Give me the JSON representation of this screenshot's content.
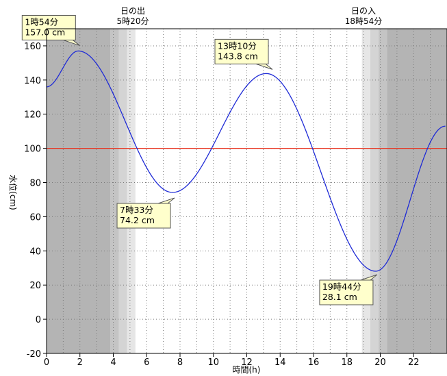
{
  "chart_data": {
    "type": "line",
    "xlabel": "時間(h)",
    "ylabel": "水位(cm)",
    "xlim": [
      0,
      24
    ],
    "ylim": [
      -20,
      170
    ],
    "xticks": [
      0,
      2,
      4,
      6,
      8,
      10,
      12,
      14,
      16,
      18,
      20,
      22
    ],
    "yticks": [
      -20,
      0,
      20,
      40,
      60,
      80,
      100,
      120,
      140,
      160
    ],
    "grid": true,
    "reference_line": {
      "y": 100,
      "color": "#e8321e"
    },
    "line_color": "#1f2bd6",
    "sunrise": {
      "label": "日の出",
      "time": "5時20分",
      "hour": 5.33
    },
    "sunset": {
      "label": "日の入",
      "time": "18時54分",
      "hour": 18.9
    },
    "extrema": [
      {
        "hour": 1.9,
        "value": 157.0,
        "time_label": "1時54分",
        "value_label": "157.0 cm"
      },
      {
        "hour": 7.55,
        "value": 74.2,
        "time_label": "7時33分",
        "value_label": "74.2 cm"
      },
      {
        "hour": 13.17,
        "value": 143.8,
        "time_label": "13時10分",
        "value_label": "143.8 cm"
      },
      {
        "hour": 19.73,
        "value": 28.1,
        "time_label": "19時44分",
        "value_label": "28.1 cm"
      }
    ],
    "series": [
      {
        "x": [
          0,
          1.9,
          7.55,
          13.17,
          19.73,
          23.9
        ],
        "y": [
          136,
          157.0,
          74.2,
          143.8,
          28.1,
          113
        ]
      }
    ]
  }
}
